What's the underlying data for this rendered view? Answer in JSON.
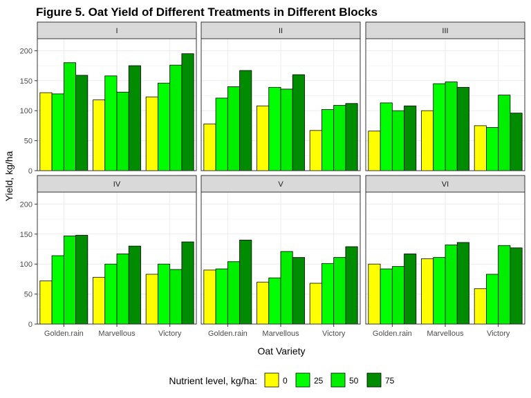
{
  "chart_data": {
    "type": "bar",
    "title": "Figure 5. Oat Yield of Different Treatments in Different Blocks",
    "xlabel": "Oat Variety",
    "ylabel": "Yield, kg/ha",
    "ylim": [
      0,
      220
    ],
    "yticks": [
      0,
      50,
      100,
      150,
      200
    ],
    "grid": true,
    "legend": {
      "title": "Nutrient level, kg/ha:",
      "placement": "bottom",
      "entries": [
        {
          "label": "0",
          "color": "#ffff00"
        },
        {
          "label": "25",
          "color": "#00ff00"
        },
        {
          "label": "50",
          "color": "#00ee00"
        },
        {
          "label": "75",
          "color": "#008b00"
        }
      ]
    },
    "categories": [
      "Golden.rain",
      "Marvellous",
      "Victory"
    ],
    "panels": [
      {
        "name": "I",
        "values": [
          [
            130,
            128,
            180,
            159
          ],
          [
            118,
            158,
            131,
            175
          ],
          [
            123,
            146,
            176,
            195
          ]
        ]
      },
      {
        "name": "II",
        "values": [
          [
            78,
            121,
            140,
            167
          ],
          [
            108,
            139,
            136,
            160
          ],
          [
            67,
            102,
            109,
            112
          ]
        ]
      },
      {
        "name": "III",
        "values": [
          [
            66,
            113,
            100,
            108
          ],
          [
            100,
            145,
            148,
            139
          ],
          [
            75,
            72,
            126,
            96
          ]
        ]
      },
      {
        "name": "IV",
        "values": [
          [
            72,
            114,
            147,
            148
          ],
          [
            78,
            100,
            117,
            130
          ],
          [
            83,
            100,
            91,
            137
          ]
        ]
      },
      {
        "name": "V",
        "values": [
          [
            90,
            92,
            104,
            140
          ],
          [
            70,
            77,
            121,
            111
          ],
          [
            68,
            101,
            111,
            129
          ]
        ]
      },
      {
        "name": "VI",
        "values": [
          [
            100,
            92,
            96,
            117
          ],
          [
            109,
            111,
            132,
            136
          ],
          [
            59,
            83,
            131,
            127
          ]
        ]
      }
    ]
  }
}
